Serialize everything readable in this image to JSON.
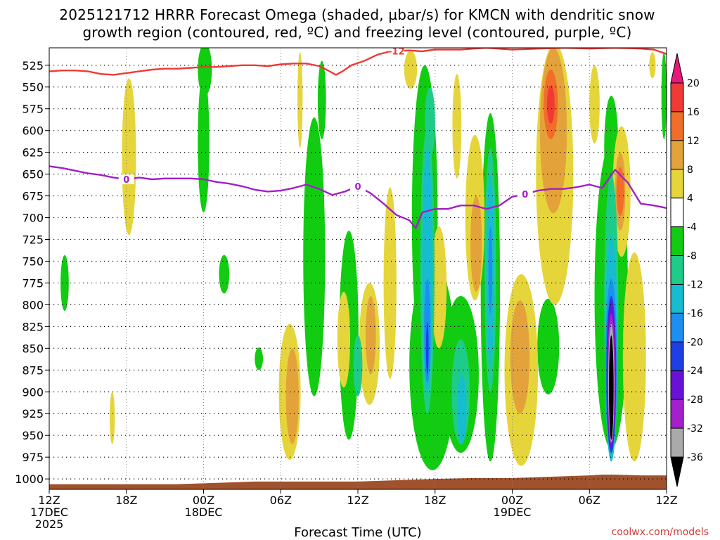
{
  "chart_data": {
    "type": "heatmap",
    "title": "2025121712 HRRR Forecast Omega (shaded, µbar/s) for KMCN with dendritic snow growth region (contoured, red, ºC) and freezing level (contoured, purple, ºC)",
    "title_lines": [
      "2025121712 HRRR Forecast Omega (shaded, µbar/s) for KMCN with dendritic snow",
      "growth region (contoured, red, ºC) and freezing level (contoured, purple, ºC)"
    ],
    "xlabel": "Forecast Time (UTC)",
    "ylabel": "",
    "credit": "coolwx.com/models",
    "x_range_hours": [
      0,
      48
    ],
    "y_range_mb": [
      505,
      1012
    ],
    "y_ticks": [
      525,
      550,
      575,
      600,
      625,
      650,
      675,
      700,
      725,
      750,
      775,
      800,
      825,
      850,
      875,
      900,
      925,
      950,
      975,
      1000
    ],
    "x_ticks": [
      {
        "hour": 0,
        "lines": [
          "12Z",
          "17DEC",
          "2025"
        ]
      },
      {
        "hour": 6,
        "lines": [
          "18Z"
        ]
      },
      {
        "hour": 12,
        "lines": [
          "00Z",
          "18DEC"
        ]
      },
      {
        "hour": 18,
        "lines": [
          "06Z"
        ]
      },
      {
        "hour": 24,
        "lines": [
          "12Z"
        ]
      },
      {
        "hour": 30,
        "lines": [
          "18Z"
        ]
      },
      {
        "hour": 36,
        "lines": [
          "00Z",
          "19DEC"
        ]
      },
      {
        "hour": 42,
        "lines": [
          "06Z"
        ]
      },
      {
        "hour": 48,
        "lines": [
          "12Z"
        ]
      }
    ],
    "colorbar": {
      "labels": [
        "20",
        "16",
        "12",
        "8",
        "4",
        "-4",
        "-8",
        "-12",
        "-16",
        "-20",
        "-24",
        "-28",
        "-32",
        "-36"
      ],
      "bins": [
        {
          "color": "#e8177a",
          "label": ">20"
        },
        {
          "color": "#f03a35",
          "label": "16-20"
        },
        {
          "color": "#f06e2a",
          "label": "12-16"
        },
        {
          "color": "#e3a33a",
          "label": "8-12"
        },
        {
          "color": "#e6d53a",
          "label": "4-8"
        },
        {
          "color": "#ffffff",
          "label": "-4-4"
        },
        {
          "color": "#11cc11",
          "label": "-8--4"
        },
        {
          "color": "#1ecc8a",
          "label": "-12--8"
        },
        {
          "color": "#17bcd0",
          "label": "-16--12"
        },
        {
          "color": "#1e8ef2",
          "label": "-20--16"
        },
        {
          "color": "#1f3fe6",
          "label": "-24--20"
        },
        {
          "color": "#6a11d8",
          "label": "-28--24"
        },
        {
          "color": "#a51fcc",
          "label": "-32--28"
        },
        {
          "color": "#aaaaaa",
          "label": "-36--32"
        },
        {
          "color": "#000000",
          "label": "<-36"
        }
      ]
    },
    "series": [
      {
        "name": "dendritic growth -12C",
        "color": "#ee3a35",
        "label": "-12",
        "label_hour": 27,
        "points": [
          [
            0,
            532
          ],
          [
            1,
            531
          ],
          [
            2,
            531
          ],
          [
            3,
            532
          ],
          [
            4,
            535
          ],
          [
            5,
            536
          ],
          [
            6,
            534
          ],
          [
            7,
            532
          ],
          [
            8,
            530
          ],
          [
            9,
            529
          ],
          [
            10,
            529
          ],
          [
            11,
            528
          ],
          [
            12,
            527
          ],
          [
            13,
            527
          ],
          [
            14,
            526
          ],
          [
            15,
            525
          ],
          [
            16,
            525
          ],
          [
            17,
            526
          ],
          [
            18,
            524
          ],
          [
            19,
            523
          ],
          [
            20,
            523
          ],
          [
            21,
            526
          ],
          [
            21.8,
            532
          ],
          [
            22.3,
            536
          ],
          [
            22.8,
            532
          ],
          [
            23.5,
            525
          ],
          [
            24.5,
            520
          ],
          [
            25.5,
            513
          ],
          [
            26.5,
            509
          ],
          [
            28,
            508
          ],
          [
            29,
            509
          ],
          [
            30,
            507
          ],
          [
            32,
            507
          ],
          [
            33,
            506
          ],
          [
            34,
            505
          ],
          [
            36,
            507
          ],
          [
            38,
            506
          ],
          [
            40,
            505
          ],
          [
            42,
            506
          ],
          [
            44,
            505
          ],
          [
            46,
            506
          ],
          [
            47,
            507
          ],
          [
            48,
            512
          ]
        ]
      },
      {
        "name": "freezing level 0C",
        "color": "#a21fc8",
        "label": "0",
        "label_hours": [
          6,
          24,
          37
        ],
        "points": [
          [
            0,
            641
          ],
          [
            1,
            643
          ],
          [
            2,
            646
          ],
          [
            3,
            649
          ],
          [
            4,
            651
          ],
          [
            5,
            654
          ],
          [
            6,
            656
          ],
          [
            7,
            654
          ],
          [
            8,
            656
          ],
          [
            9,
            655
          ],
          [
            10,
            655
          ],
          [
            11,
            655
          ],
          [
            12,
            656
          ],
          [
            13,
            659
          ],
          [
            14,
            661
          ],
          [
            15,
            664
          ],
          [
            16,
            668
          ],
          [
            17,
            670
          ],
          [
            18,
            669
          ],
          [
            19,
            666
          ],
          [
            20,
            662
          ],
          [
            21,
            667
          ],
          [
            22,
            674
          ],
          [
            23,
            670
          ],
          [
            24,
            664
          ],
          [
            25,
            672
          ],
          [
            26,
            684
          ],
          [
            27,
            697
          ],
          [
            28,
            703
          ],
          [
            28.5,
            712
          ],
          [
            29,
            694
          ],
          [
            30,
            690
          ],
          [
            31,
            690
          ],
          [
            32,
            686
          ],
          [
            33,
            686
          ],
          [
            34,
            690
          ],
          [
            35,
            686
          ],
          [
            36,
            676
          ],
          [
            37,
            673
          ],
          [
            38,
            669
          ],
          [
            39,
            667
          ],
          [
            40,
            667
          ],
          [
            41,
            665
          ],
          [
            42,
            662
          ],
          [
            43,
            666
          ],
          [
            44,
            645
          ],
          [
            45,
            660
          ],
          [
            46,
            684
          ],
          [
            47,
            686
          ],
          [
            48,
            689
          ]
        ]
      }
    ],
    "terrain_surface": [
      [
        0,
        1006
      ],
      [
        10,
        1006
      ],
      [
        12,
        1005
      ],
      [
        14,
        1004
      ],
      [
        16,
        1003
      ],
      [
        18,
        1003
      ],
      [
        22,
        1003
      ],
      [
        24,
        1003
      ],
      [
        26,
        1002
      ],
      [
        30,
        1000
      ],
      [
        33,
        999
      ],
      [
        36,
        999
      ],
      [
        38,
        998
      ],
      [
        40,
        997
      ],
      [
        42,
        996
      ],
      [
        43,
        995
      ],
      [
        44,
        995
      ],
      [
        46,
        996
      ],
      [
        48,
        996
      ]
    ],
    "fields": [
      {
        "bin": 6,
        "hour": 12,
        "p": 614,
        "rx": 0.45,
        "ry": 80
      },
      {
        "bin": 6,
        "hour": 12.1,
        "p": 530,
        "rx": 0.55,
        "ry": 30
      },
      {
        "bin": 6,
        "hour": 1.2,
        "p": 775,
        "rx": 0.32,
        "ry": 32
      },
      {
        "bin": 6,
        "hour": 13.6,
        "p": 765,
        "rx": 0.4,
        "ry": 22
      },
      {
        "bin": 6,
        "hour": 16.3,
        "p": 862,
        "rx": 0.32,
        "ry": 13
      },
      {
        "bin": 6,
        "hour": 20.6,
        "p": 745,
        "rx": 0.85,
        "ry": 160
      },
      {
        "bin": 6,
        "hour": 21.2,
        "p": 565,
        "rx": 0.32,
        "ry": 45
      },
      {
        "bin": 6,
        "hour": 23.3,
        "p": 835,
        "rx": 0.75,
        "ry": 120
      },
      {
        "bin": 6,
        "hour": 29.8,
        "p": 870,
        "rx": 1.8,
        "ry": 120
      },
      {
        "bin": 6,
        "hour": 29.2,
        "p": 700,
        "rx": 1.0,
        "ry": 175
      },
      {
        "bin": 6,
        "hour": 32.0,
        "p": 880,
        "rx": 1.4,
        "ry": 90
      },
      {
        "bin": 6,
        "hour": 34.3,
        "p": 780,
        "rx": 0.75,
        "ry": 200
      },
      {
        "bin": 6,
        "hour": 38.8,
        "p": 848,
        "rx": 0.85,
        "ry": 55
      },
      {
        "bin": 6,
        "hour": 43.7,
        "p": 620,
        "rx": 0.55,
        "ry": 60
      },
      {
        "bin": 6,
        "hour": 43.7,
        "p": 790,
        "rx": 1.3,
        "ry": 175
      },
      {
        "bin": 6,
        "hour": 47.8,
        "p": 560,
        "rx": 0.2,
        "ry": 50
      },
      {
        "bin": 4,
        "hour": 6.2,
        "p": 630,
        "rx": 0.55,
        "ry": 90
      },
      {
        "bin": 4,
        "hour": 4.9,
        "p": 930,
        "rx": 0.2,
        "ry": 30
      },
      {
        "bin": 4,
        "hour": 18.7,
        "p": 900,
        "rx": 0.85,
        "ry": 78
      },
      {
        "bin": 4,
        "hour": 19.5,
        "p": 565,
        "rx": 0.2,
        "ry": 55
      },
      {
        "bin": 4,
        "hour": 22.9,
        "p": 840,
        "rx": 0.5,
        "ry": 55
      },
      {
        "bin": 4,
        "hour": 24.9,
        "p": 845,
        "rx": 0.8,
        "ry": 70
      },
      {
        "bin": 4,
        "hour": 26.5,
        "p": 775,
        "rx": 0.5,
        "ry": 110
      },
      {
        "bin": 4,
        "hour": 28.1,
        "p": 530,
        "rx": 0.5,
        "ry": 22
      },
      {
        "bin": 4,
        "hour": 30.3,
        "p": 780,
        "rx": 0.6,
        "ry": 70
      },
      {
        "bin": 4,
        "hour": 31.7,
        "p": 595,
        "rx": 0.35,
        "ry": 60
      },
      {
        "bin": 4,
        "hour": 33.1,
        "p": 700,
        "rx": 0.75,
        "ry": 95
      },
      {
        "bin": 4,
        "hour": 36.7,
        "p": 875,
        "rx": 1.3,
        "ry": 110
      },
      {
        "bin": 4,
        "hour": 39.3,
        "p": 650,
        "rx": 1.45,
        "ry": 150
      },
      {
        "bin": 4,
        "hour": 42.4,
        "p": 570,
        "rx": 0.4,
        "ry": 45
      },
      {
        "bin": 4,
        "hour": 44.5,
        "p": 670,
        "rx": 0.7,
        "ry": 75
      },
      {
        "bin": 4,
        "hour": 45.5,
        "p": 860,
        "rx": 0.9,
        "ry": 120
      },
      {
        "bin": 4,
        "hour": 46.9,
        "p": 525,
        "rx": 0.25,
        "ry": 15
      },
      {
        "bin": 3,
        "hour": 18.9,
        "p": 905,
        "rx": 0.5,
        "ry": 55
      },
      {
        "bin": 3,
        "hour": 25.0,
        "p": 835,
        "rx": 0.4,
        "ry": 45
      },
      {
        "bin": 3,
        "hour": 33.2,
        "p": 730,
        "rx": 0.45,
        "ry": 55
      },
      {
        "bin": 3,
        "hour": 36.6,
        "p": 860,
        "rx": 0.75,
        "ry": 65
      },
      {
        "bin": 3,
        "hour": 39.2,
        "p": 600,
        "rx": 1.05,
        "ry": 95
      },
      {
        "bin": 3,
        "hour": 44.4,
        "p": 670,
        "rx": 0.4,
        "ry": 45
      },
      {
        "bin": 2,
        "hour": 39.0,
        "p": 570,
        "rx": 0.55,
        "ry": 40
      },
      {
        "bin": 2,
        "hour": 44.4,
        "p": 670,
        "rx": 0.3,
        "ry": 28
      },
      {
        "bin": 1,
        "hour": 39.0,
        "p": 570,
        "rx": 0.3,
        "ry": 22
      },
      {
        "bin": 7,
        "hour": 29.4,
        "p": 760,
        "rx": 0.55,
        "ry": 165
      },
      {
        "bin": 7,
        "hour": 29.6,
        "p": 590,
        "rx": 0.4,
        "ry": 40
      },
      {
        "bin": 7,
        "hour": 34.3,
        "p": 760,
        "rx": 0.45,
        "ry": 140
      },
      {
        "bin": 7,
        "hour": 32.0,
        "p": 900,
        "rx": 0.7,
        "ry": 60
      },
      {
        "bin": 7,
        "hour": 24.0,
        "p": 870,
        "rx": 0.35,
        "ry": 35
      },
      {
        "bin": 7,
        "hour": 43.7,
        "p": 800,
        "rx": 0.55,
        "ry": 150
      },
      {
        "bin": 8,
        "hour": 29.4,
        "p": 760,
        "rx": 0.4,
        "ry": 140
      },
      {
        "bin": 8,
        "hour": 34.3,
        "p": 760,
        "rx": 0.3,
        "ry": 110
      },
      {
        "bin": 8,
        "hour": 32.1,
        "p": 920,
        "rx": 0.35,
        "ry": 40
      },
      {
        "bin": 8,
        "hour": 43.7,
        "p": 850,
        "rx": 0.5,
        "ry": 130
      },
      {
        "bin": 9,
        "hour": 29.4,
        "p": 830,
        "rx": 0.25,
        "ry": 60
      },
      {
        "bin": 9,
        "hour": 34.3,
        "p": 760,
        "rx": 0.15,
        "ry": 50
      },
      {
        "bin": 9,
        "hour": 43.7,
        "p": 870,
        "rx": 0.45,
        "ry": 100
      },
      {
        "bin": 10,
        "hour": 29.4,
        "p": 850,
        "rx": 0.1,
        "ry": 30
      },
      {
        "bin": 10,
        "hour": 43.7,
        "p": 880,
        "rx": 0.38,
        "ry": 90
      },
      {
        "bin": 11,
        "hour": 43.7,
        "p": 880,
        "rx": 0.34,
        "ry": 85
      },
      {
        "bin": 12,
        "hour": 43.7,
        "p": 885,
        "rx": 0.3,
        "ry": 75
      },
      {
        "bin": 13,
        "hour": 43.7,
        "p": 890,
        "rx": 0.24,
        "ry": 68
      },
      {
        "bin": 14,
        "hour": 43.7,
        "p": 895,
        "rx": 0.18,
        "ry": 60
      }
    ]
  }
}
